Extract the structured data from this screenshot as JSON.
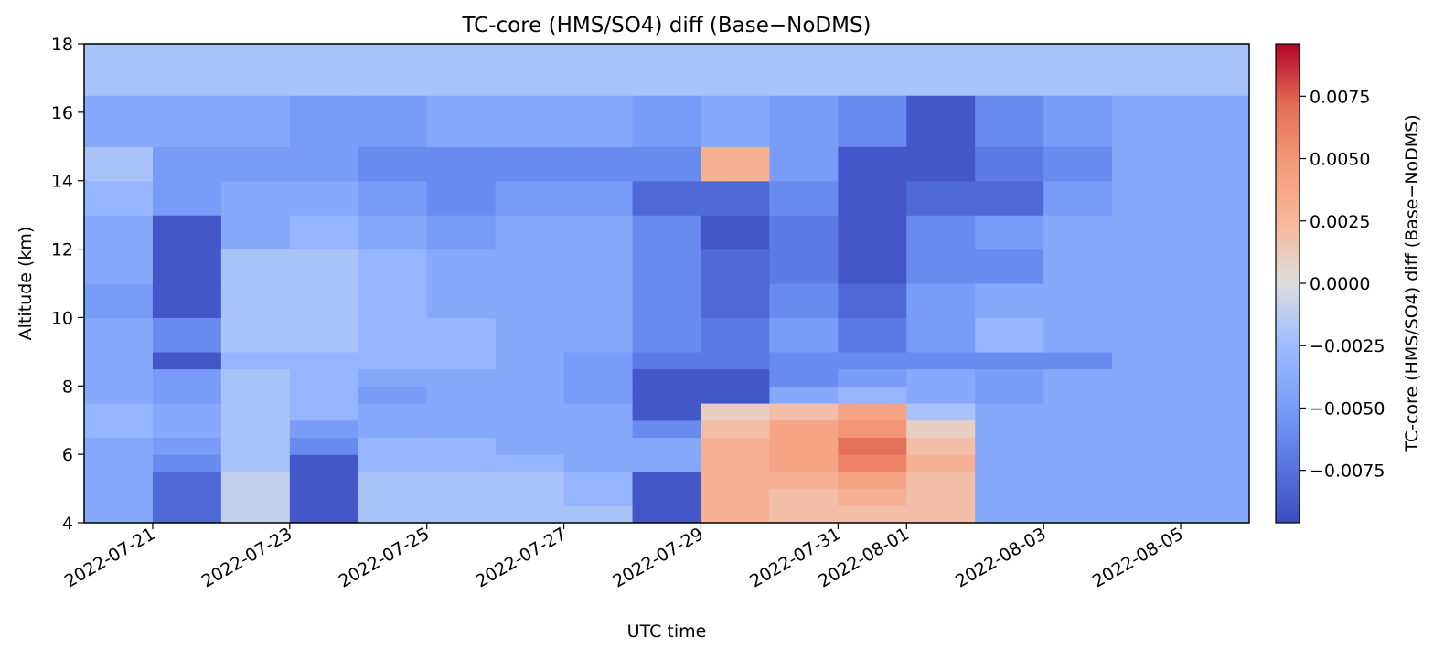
{
  "chart_data": {
    "type": "heatmap",
    "title": "TC-core (HMS/SO4) diff (Base−NoDMS)",
    "xlabel": "UTC time",
    "ylabel": "Altitude (km)",
    "colorbar_label": "TC-core (HMS/SO4) diff (Base−NoDMS)",
    "colormap": "coolwarm",
    "clim": [
      -0.0096,
      0.0096
    ],
    "grid": false,
    "x_range": [
      "2022-07-20",
      "2022-08-06"
    ],
    "y_range": [
      4,
      18
    ],
    "x_tick_labels": [
      "2022-07-21",
      "2022-07-23",
      "2022-07-25",
      "2022-07-27",
      "2022-07-29",
      "2022-07-31",
      "2022-08-01",
      "2022-08-03",
      "2022-08-05"
    ],
    "y_tick_labels": [
      "4",
      "6",
      "8",
      "10",
      "12",
      "14",
      "16",
      "18"
    ],
    "y_ticks": [
      4,
      6,
      8,
      10,
      12,
      14,
      16,
      18
    ],
    "colorbar_tick_labels": [
      "−0.0075",
      "−0.0050",
      "−0.0025",
      "0.0000",
      "0.0025",
      "0.0050",
      "0.0075"
    ],
    "colorbar_ticks": [
      -0.0075,
      -0.005,
      -0.0025,
      0,
      0.0025,
      0.005,
      0.0075
    ],
    "altitude_edges_km": [
      4,
      4.5,
      5,
      5.5,
      6,
      6.5,
      7,
      7.5,
      8,
      8.5,
      9,
      10,
      11,
      12,
      13,
      14,
      15,
      16.5,
      18
    ],
    "time_columns": [
      "07-20",
      "07-21",
      "07-22",
      "07-23",
      "07-24",
      "07-25",
      "07-26",
      "07-27",
      "07-28",
      "07-29",
      "07-30",
      "07-31",
      "08-01",
      "08-02",
      "08-03",
      "08-04",
      "08-05"
    ],
    "values_by_altitude_row": [
      [
        -0.004,
        -0.008,
        -0.001,
        -0.009,
        -0.002,
        -0.002,
        -0.002,
        -0.002,
        -0.009,
        0.003,
        0.002,
        0.002,
        0.002,
        -0.004,
        -0.004,
        -0.004,
        -0.004
      ],
      [
        -0.004,
        -0.008,
        -0.001,
        -0.009,
        -0.002,
        -0.002,
        -0.002,
        -0.003,
        -0.009,
        0.003,
        0.002,
        0.003,
        0.002,
        -0.004,
        -0.004,
        -0.004,
        -0.004
      ],
      [
        -0.004,
        -0.008,
        -0.001,
        -0.009,
        -0.002,
        -0.002,
        -0.002,
        -0.003,
        -0.009,
        0.003,
        0.003,
        0.004,
        0.002,
        -0.004,
        -0.004,
        -0.004,
        -0.004
      ],
      [
        -0.004,
        -0.006,
        -0.002,
        -0.009,
        -0.003,
        -0.003,
        -0.003,
        -0.004,
        -0.004,
        0.003,
        0.004,
        0.006,
        0.003,
        -0.004,
        -0.004,
        -0.004,
        -0.004
      ],
      [
        -0.004,
        -0.005,
        -0.002,
        -0.006,
        -0.003,
        -0.003,
        -0.004,
        -0.004,
        -0.004,
        0.003,
        0.004,
        0.007,
        0.002,
        -0.004,
        -0.004,
        -0.004,
        -0.004
      ],
      [
        -0.003,
        -0.004,
        -0.002,
        -0.005,
        -0.004,
        -0.004,
        -0.004,
        -0.004,
        -0.006,
        0.002,
        0.004,
        0.005,
        0.001,
        -0.004,
        -0.004,
        -0.004,
        -0.004
      ],
      [
        -0.003,
        -0.004,
        -0.002,
        -0.003,
        -0.004,
        -0.004,
        -0.004,
        -0.004,
        -0.009,
        0.001,
        0.002,
        0.004,
        -0.002,
        -0.004,
        -0.004,
        -0.004,
        -0.004
      ],
      [
        -0.004,
        -0.005,
        -0.002,
        -0.003,
        -0.005,
        -0.004,
        -0.004,
        -0.005,
        -0.009,
        -0.009,
        -0.004,
        -0.003,
        -0.004,
        -0.005,
        -0.004,
        -0.004,
        -0.004
      ],
      [
        -0.004,
        -0.005,
        -0.002,
        -0.003,
        -0.004,
        -0.004,
        -0.004,
        -0.005,
        -0.009,
        -0.009,
        -0.006,
        -0.005,
        -0.004,
        -0.005,
        -0.004,
        -0.004,
        -0.004
      ],
      [
        -0.004,
        -0.009,
        -0.003,
        -0.003,
        -0.003,
        -0.003,
        -0.004,
        -0.005,
        -0.007,
        -0.007,
        -0.006,
        -0.006,
        -0.006,
        -0.006,
        -0.006,
        -0.004,
        -0.004
      ],
      [
        -0.004,
        -0.006,
        -0.002,
        -0.002,
        -0.003,
        -0.003,
        -0.004,
        -0.004,
        -0.006,
        -0.007,
        -0.005,
        -0.007,
        -0.005,
        -0.003,
        -0.004,
        -0.004,
        -0.004
      ],
      [
        -0.005,
        -0.009,
        -0.002,
        -0.002,
        -0.003,
        -0.004,
        -0.004,
        -0.004,
        -0.006,
        -0.008,
        -0.006,
        -0.008,
        -0.005,
        -0.004,
        -0.004,
        -0.004,
        -0.004
      ],
      [
        -0.004,
        -0.009,
        -0.002,
        -0.002,
        -0.003,
        -0.004,
        -0.004,
        -0.004,
        -0.006,
        -0.008,
        -0.007,
        -0.009,
        -0.006,
        -0.006,
        -0.004,
        -0.004,
        -0.004
      ],
      [
        -0.004,
        -0.009,
        -0.004,
        -0.003,
        -0.004,
        -0.005,
        -0.004,
        -0.004,
        -0.006,
        -0.009,
        -0.007,
        -0.009,
        -0.006,
        -0.005,
        -0.004,
        -0.004,
        -0.004
      ],
      [
        -0.003,
        -0.005,
        -0.004,
        -0.004,
        -0.005,
        -0.006,
        -0.005,
        -0.005,
        -0.008,
        -0.008,
        -0.006,
        -0.009,
        -0.008,
        -0.008,
        -0.005,
        -0.004,
        -0.004
      ],
      [
        -0.002,
        -0.005,
        -0.005,
        -0.005,
        -0.006,
        -0.006,
        -0.006,
        -0.006,
        -0.006,
        0.003,
        -0.005,
        -0.009,
        -0.009,
        -0.007,
        -0.006,
        -0.004,
        -0.004
      ],
      [
        -0.004,
        -0.004,
        -0.004,
        -0.005,
        -0.005,
        -0.004,
        -0.004,
        -0.004,
        -0.005,
        -0.004,
        -0.005,
        -0.006,
        -0.009,
        -0.006,
        -0.005,
        -0.004,
        -0.004
      ],
      [
        -0.002,
        -0.002,
        -0.002,
        -0.002,
        -0.002,
        -0.002,
        -0.002,
        -0.002,
        -0.002,
        -0.002,
        -0.002,
        -0.002,
        -0.002,
        -0.002,
        -0.002,
        -0.002,
        -0.002
      ]
    ]
  }
}
